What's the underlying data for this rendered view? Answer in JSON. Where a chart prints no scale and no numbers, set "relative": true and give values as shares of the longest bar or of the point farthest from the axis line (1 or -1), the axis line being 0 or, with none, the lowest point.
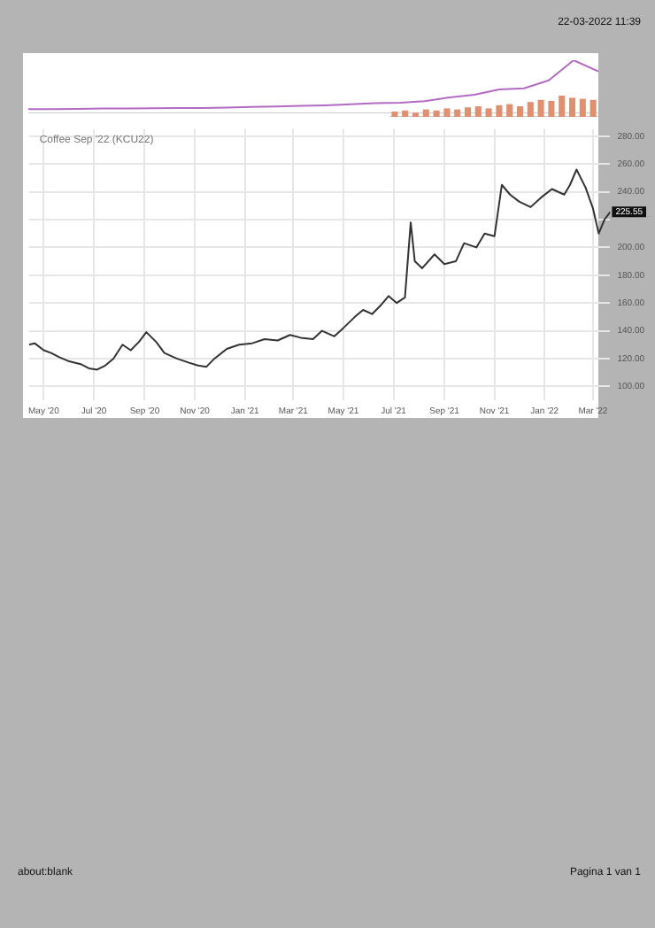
{
  "chart_data": [
    {
      "type": "line",
      "relative": true,
      "tick_labels": false,
      "legend": false,
      "categories": [
        null,
        null,
        null,
        null,
        null,
        null,
        null,
        null,
        null,
        null,
        null,
        null,
        null,
        null,
        null,
        null,
        null,
        null,
        null,
        null,
        null,
        null,
        null,
        null
      ],
      "series": [
        {
          "color": "#b36ac2",
          "values": [
            0.08,
            0.08,
            0.085,
            0.09,
            0.09,
            0.095,
            0.1,
            0.1,
            0.11,
            0.12,
            0.13,
            0.14,
            0.15,
            0.17,
            0.19,
            0.2,
            0.23,
            0.3,
            0.35,
            0.45,
            0.47,
            0.62,
            1,
            0.79
          ]
        }
      ]
    },
    {
      "type": "line",
      "title": "Coffee Sep '22 (KCU22)",
      "grid": true,
      "legend": false,
      "marker": "none",
      "xlim": [
        "2020-04-13",
        "2022-03-22"
      ],
      "xticks": [
        {
          "value": "2020-05-01",
          "label": "May '20"
        },
        {
          "value": "2020-07-01",
          "label": "Jul '20"
        },
        {
          "value": "2020-09-01",
          "label": "Sep '20"
        },
        {
          "value": "2020-11-01",
          "label": "Nov '20"
        },
        {
          "value": "2021-01-01",
          "label": "Jan '21"
        },
        {
          "value": "2021-03-01",
          "label": "Mar '21"
        },
        {
          "value": "2021-05-01",
          "label": "May '21"
        },
        {
          "value": "2021-07-01",
          "label": "Jul '21"
        },
        {
          "value": "2021-09-01",
          "label": "Sep '21"
        },
        {
          "value": "2021-11-01",
          "label": "Nov '21"
        },
        {
          "value": "2022-01-01",
          "label": "Jan '22"
        },
        {
          "value": "2022-03-01",
          "label": "Mar '22"
        }
      ],
      "ylim": [
        90,
        285
      ],
      "yticks": [
        {
          "value": 100,
          "label": "100.00"
        },
        {
          "value": 120,
          "label": "120.00"
        },
        {
          "value": 140,
          "label": "140.00"
        },
        {
          "value": 160,
          "label": "160.00"
        },
        {
          "value": 180,
          "label": "180.00"
        },
        {
          "value": 200,
          "label": "200.00"
        },
        {
          "value": 220,
          "label": null
        },
        {
          "value": 240,
          "label": "240.00"
        },
        {
          "value": 260,
          "label": "260.00"
        },
        {
          "value": 280,
          "label": "280.00"
        }
      ],
      "series": [
        {
          "color": "#333333",
          "x": [
            "2020-04-13",
            "2020-04-20",
            "2020-05-01",
            "2020-05-10",
            "2020-05-20",
            "2020-06-01",
            "2020-06-15",
            "2020-06-25",
            "2020-07-05",
            "2020-07-15",
            "2020-07-25",
            "2020-08-05",
            "2020-08-15",
            "2020-08-25",
            "2020-09-03",
            "2020-09-15",
            "2020-09-25",
            "2020-10-10",
            "2020-10-25",
            "2020-11-05",
            "2020-11-15",
            "2020-11-25",
            "2020-12-10",
            "2020-12-25",
            "2021-01-10",
            "2021-01-25",
            "2021-02-10",
            "2021-02-25",
            "2021-03-10",
            "2021-03-25",
            "2021-04-05",
            "2021-04-20",
            "2021-05-01",
            "2021-05-15",
            "2021-05-25",
            "2021-06-05",
            "2021-06-15",
            "2021-06-25",
            "2021-07-05",
            "2021-07-15",
            "2021-07-22",
            "2021-07-27",
            "2021-08-05",
            "2021-08-20",
            "2021-09-01",
            "2021-09-15",
            "2021-09-25",
            "2021-10-10",
            "2021-10-20",
            "2021-11-01",
            "2021-11-10",
            "2021-11-20",
            "2021-12-01",
            "2021-12-15",
            "2021-12-28",
            "2022-01-10",
            "2022-01-25",
            "2022-02-01",
            "2022-02-09",
            "2022-02-20",
            "2022-03-01",
            "2022-03-08",
            "2022-03-15",
            "2022-03-22"
          ],
          "values": [
            130,
            131,
            126,
            124,
            121,
            118,
            116,
            113,
            112,
            115,
            120,
            130,
            126,
            132,
            139,
            132,
            124,
            120,
            117,
            115,
            114,
            120,
            127,
            130,
            131,
            134,
            133,
            137,
            135,
            134,
            140,
            136,
            142,
            150,
            155,
            152,
            158,
            165,
            160,
            164,
            218,
            190,
            185,
            195,
            188,
            190,
            203,
            200,
            210,
            208,
            245,
            238,
            233,
            229,
            236,
            242,
            238,
            245,
            256,
            243,
            228,
            210,
            220,
            225.55
          ]
        }
      ],
      "annotations": [
        "22-03-2022 11:39",
        "about:blank",
        "Pagina 1 van 1",
        {
          "text": "225.55",
          "x": "2022-03-22",
          "y": 225.55
        }
      ]
    },
    {
      "type": "bar",
      "relative": true,
      "tick_labels": false,
      "legend": false,
      "categories": [
        null,
        null,
        null,
        null,
        null,
        null,
        null,
        null,
        null,
        null,
        null,
        null,
        null,
        null,
        null,
        null,
        null,
        null,
        null,
        null
      ],
      "series": [
        {
          "color": "#e09070",
          "values": [
            0.25,
            0.3,
            0.2,
            0.35,
            0.3,
            0.4,
            0.35,
            0.45,
            0.5,
            0.4,
            0.55,
            0.6,
            0.5,
            0.7,
            0.8,
            0.75,
            1,
            0.9,
            0.85,
            0.8
          ]
        }
      ]
    }
  ]
}
